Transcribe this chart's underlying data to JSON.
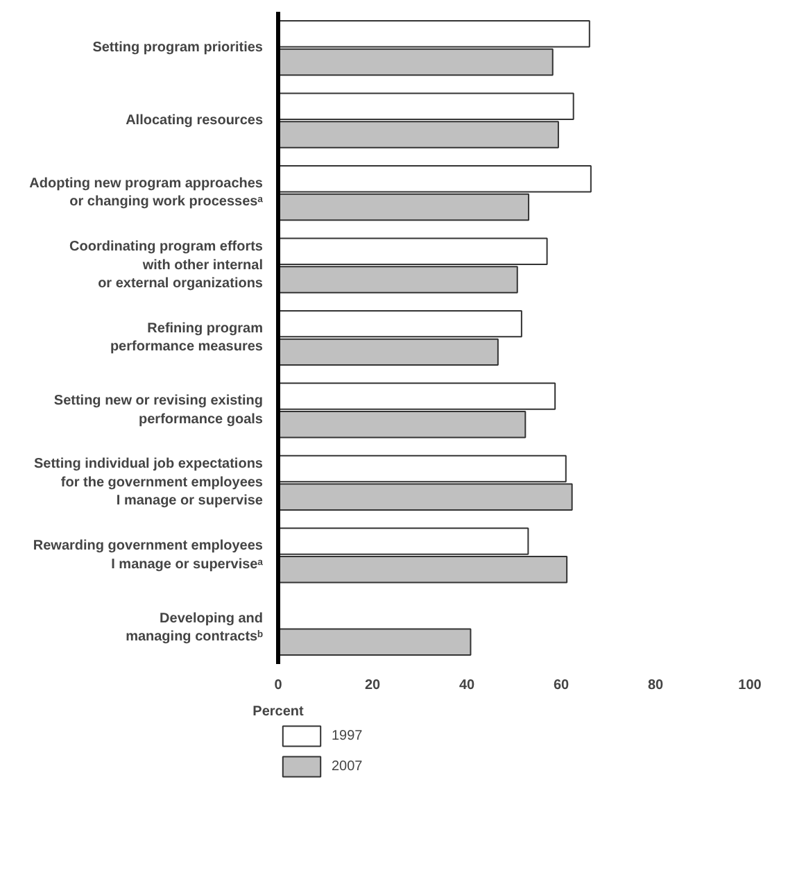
{
  "chart_data": {
    "type": "bar",
    "orientation": "horizontal",
    "xlabel": "Percent",
    "categories": [
      "Setting program priorities",
      "Allocating resources",
      "Adopting new program approaches\nor changing work processesᵃ",
      "Coordinating program efforts\nwith other internal\nor external organizations",
      "Refining program\nperformance measures",
      "Setting new or revising existing\nperformance goals",
      "Setting individual job expectations\nfor the government employees\nI manage or supervise",
      "Rewarding government employees\nI manage or superviseᵃ",
      "Developing and\nmanaging contractsᵇ"
    ],
    "series": [
      {
        "name": "1997",
        "color": "#ffffff",
        "values": [
          66,
          62.6,
          66.3,
          57,
          51.6,
          58.7,
          61,
          53,
          null
        ]
      },
      {
        "name": "2007",
        "color": "#c0c0c0",
        "values": [
          58.2,
          59.4,
          53.1,
          50.7,
          46.6,
          52.4,
          62.3,
          61.2,
          40.8
        ]
      }
    ],
    "xlim": [
      0,
      100
    ],
    "xticks": [
      0,
      20,
      40,
      60,
      80,
      100
    ],
    "grid": false,
    "legend": "bottom left"
  }
}
